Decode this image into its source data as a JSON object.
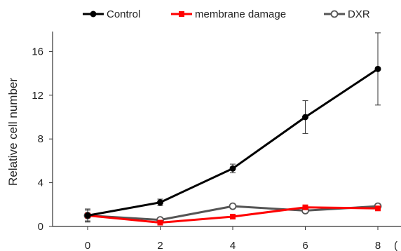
{
  "chart_data": {
    "type": "line",
    "title": "",
    "xlabel": "",
    "ylabel": "Relative cell number",
    "x_unit_partial": "(",
    "x": [
      0,
      2,
      4,
      6,
      8
    ],
    "x_ticks": [
      "0",
      "2",
      "4",
      "6",
      "8"
    ],
    "y_ticks": [
      "0",
      "4",
      "8",
      "12",
      "16"
    ],
    "xlim": [
      -1.5,
      9.5
    ],
    "ylim": [
      0,
      18
    ],
    "grid": false,
    "legend": "top",
    "series": [
      {
        "name": "Control",
        "color": "#000000",
        "marker": "filled-circle",
        "values": [
          1.0,
          2.2,
          5.3,
          10.0,
          14.4
        ],
        "errors": [
          0.5,
          0.3,
          0.4,
          1.5,
          3.3
        ]
      },
      {
        "name": "membrane damage",
        "color": "#ff0000",
        "marker": "filled-square",
        "values": [
          1.0,
          0.35,
          0.9,
          1.75,
          1.65
        ],
        "errors": [
          0.5,
          0.2,
          0.15,
          0.2,
          0.2
        ]
      },
      {
        "name": "DXR",
        "color": "#555555",
        "marker": "open-circle",
        "values": [
          1.0,
          0.6,
          1.85,
          1.45,
          1.85
        ],
        "errors": [
          0.6,
          0.2,
          0.1,
          0.1,
          0.1
        ]
      }
    ]
  }
}
